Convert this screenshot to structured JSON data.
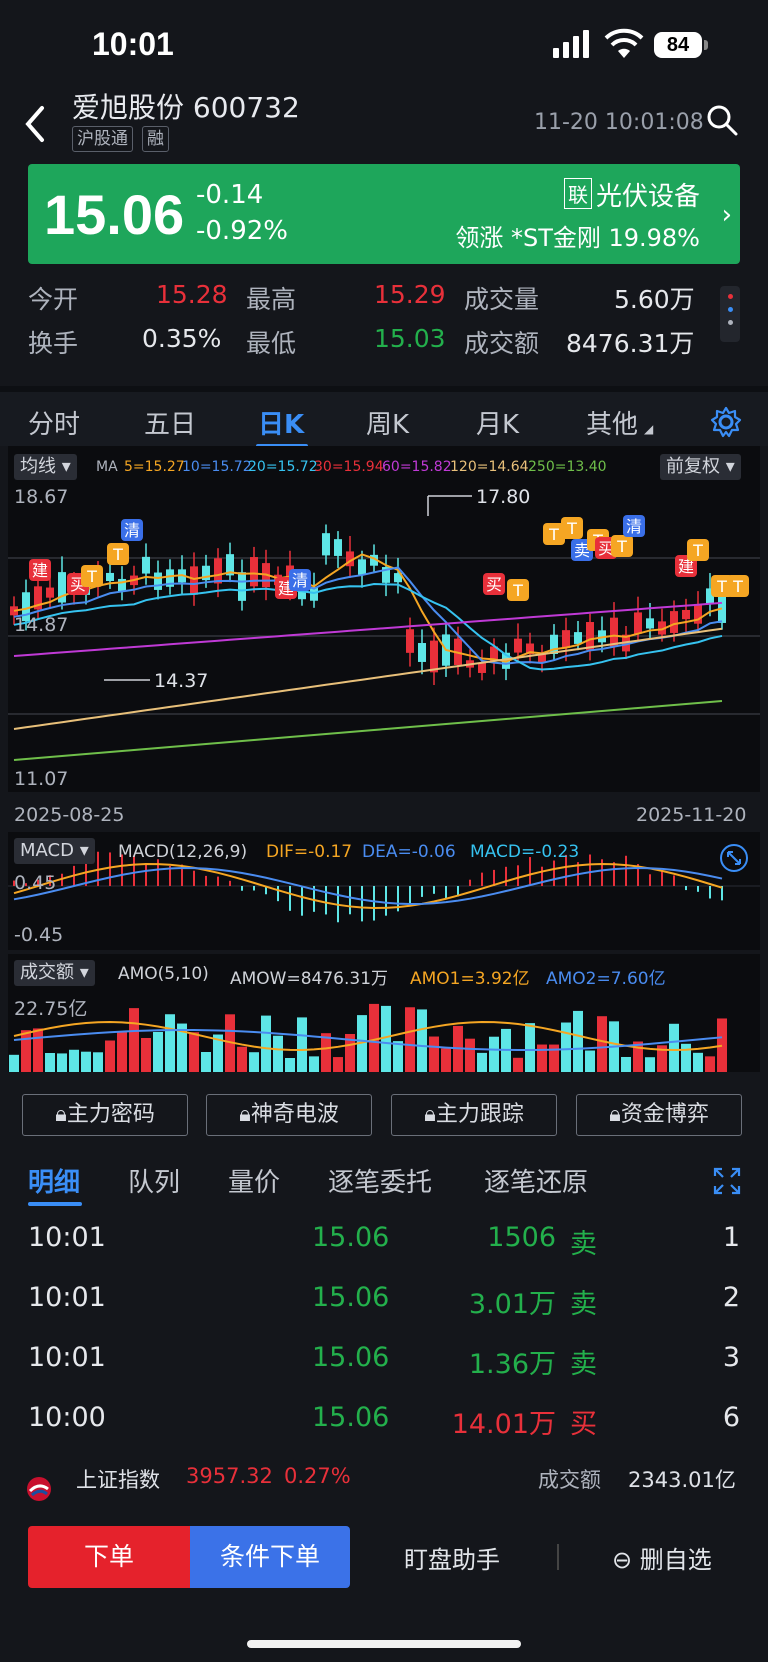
{
  "status_bar": {
    "time": "10:01",
    "battery": "84"
  },
  "header": {
    "stock_name": "爱旭股份 600732",
    "tag1": "沪股通",
    "tag2": "融",
    "datetime": "11-20 10:01:08"
  },
  "price": {
    "last": "15.06",
    "change": "-0.14",
    "change_pct": "-0.92%",
    "sector_badge": "联",
    "sector": "光伏设备",
    "leader": "领涨 *ST金刚 19.98%"
  },
  "quote": {
    "open_label": "今开",
    "open": "15.28",
    "high_label": "最高",
    "high": "15.29",
    "volume_label": "成交量",
    "volume": "5.60万",
    "turnover_label": "换手",
    "turnover": "0.35%",
    "low_label": "最低",
    "low": "15.03",
    "amount_label": "成交额",
    "amount": "8476.31万"
  },
  "period_tabs": [
    "分时",
    "五日",
    "日K",
    "周K",
    "月K",
    "其他"
  ],
  "active_period": "日K",
  "chart_labels": {
    "ma_button": "均线",
    "ma_prefix": "MA",
    "ma5": "5=15.27",
    "ma10": "10=15.72",
    "ma20": "20=15.72",
    "ma30": "30=15.94",
    "ma60": "60=15.82",
    "ma120": "120=14.64",
    "ma250": "250=13.40",
    "adjust_button": "前复权",
    "y_top": "18.67",
    "y_mid": "14.87",
    "y_bottom": "11.07",
    "high_mark": "17.80",
    "low_mark": "14.37",
    "date_start": "2025-08-25",
    "date_end": "2025-11-20",
    "macd_button": "MACD",
    "macd_params": "MACD(12,26,9)",
    "dif": "DIF=-0.17",
    "dea": "DEA=-0.06",
    "macd": "MACD=-0.23",
    "macd_top": "0.45",
    "macd_bottom": "-0.45",
    "amo_button": "成交额",
    "amo_params": "AMO(5,10)",
    "amow": "AMOW=8476.31万",
    "amo1": "AMO1=3.92亿",
    "amo2": "AMO2=7.60亿",
    "amo_top": "22.75亿",
    "signal_buy": "买",
    "signal_sell": "卖",
    "signal_build": "建",
    "signal_clear": "清",
    "signal_t": "T"
  },
  "colors": {
    "up": "#e8303a",
    "down": "#5ee6e6",
    "ma5": "#f5a623",
    "ma10": "#4a8cf0",
    "ma20": "#36c3f0",
    "ma30": "#e8303a",
    "ma60": "#c03ad6",
    "ma120": "#e8c07a",
    "ma250": "#6fbf4a",
    "accent": "#3a8ef6"
  },
  "tools": [
    "主力密码",
    "神奇电波",
    "主力跟踪",
    "资金博弈"
  ],
  "detail_tabs": [
    "明细",
    "队列",
    "量价",
    "逐笔委托",
    "逐笔还原"
  ],
  "ticks": [
    {
      "time": "10:01",
      "price": "15.06",
      "vol": "1506",
      "side": "卖",
      "n": "1"
    },
    {
      "time": "10:01",
      "price": "15.06",
      "vol": "3.01万",
      "side": "卖",
      "n": "2"
    },
    {
      "time": "10:01",
      "price": "15.06",
      "vol": "1.36万",
      "side": "卖",
      "n": "3"
    },
    {
      "time": "10:00",
      "price": "15.06",
      "vol": "14.01万",
      "side": "买",
      "n": "6"
    }
  ],
  "index_bar": {
    "name": "上证指数",
    "value": "3957.32",
    "pct": "0.27%",
    "amount_label": "成交额",
    "amount": "2343.01亿"
  },
  "bottom_bar": {
    "order": "下单",
    "cond_order": "条件下单",
    "assistant": "盯盘助手",
    "remove": "删自选"
  }
}
